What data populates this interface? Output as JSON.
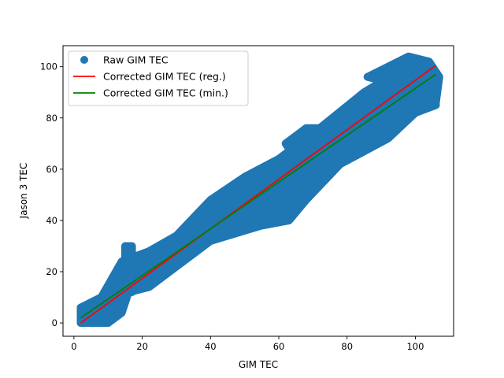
{
  "chart_data": {
    "type": "scatter",
    "title": "",
    "xlabel": "GIM TEC",
    "ylabel": "Jason 3 TEC",
    "xlim": [
      -3.2,
      111.2
    ],
    "ylim": [
      -5.2,
      108.2
    ],
    "xticks": [
      0,
      20,
      40,
      60,
      80,
      100
    ],
    "yticks": [
      0,
      20,
      40,
      60,
      80,
      100
    ],
    "grid": false,
    "legend_placement": "top-left",
    "series": [
      {
        "name": "Raw GIM TEC",
        "kind": "scatter",
        "color": "#1f77b4",
        "regions": [
          {
            "points": [
              [
                2,
                0
              ],
              [
                10,
                0
              ],
              [
                14,
                4
              ],
              [
                16,
                12
              ],
              [
                22,
                14
              ],
              [
                30,
                22
              ],
              [
                40,
                32
              ],
              [
                55,
                38
              ],
              [
                63,
                40
              ],
              [
                68,
                48
              ],
              [
                78,
                62
              ],
              [
                92,
                72
              ],
              [
                100,
                82
              ],
              [
                106,
                85
              ],
              [
                104,
                98
              ],
              [
                98,
                103
              ],
              [
                95,
                98
              ],
              [
                85,
                90
              ],
              [
                72,
                76
              ],
              [
                60,
                64
              ],
              [
                50,
                57
              ],
              [
                40,
                48
              ],
              [
                30,
                34
              ],
              [
                22,
                28
              ],
              [
                14,
                24
              ],
              [
                8,
                10
              ],
              [
                2,
                6
              ]
            ]
          },
          {
            "points": [
              [
                15,
                12
              ],
              [
                17,
                12
              ],
              [
                17,
                30
              ],
              [
                15,
                30
              ]
            ]
          },
          {
            "points": [
              [
                86,
                96
              ],
              [
                92,
                100
              ],
              [
                98,
                104
              ],
              [
                104,
                102
              ],
              [
                107,
                96
              ],
              [
                106,
                86
              ],
              [
                100,
                83
              ],
              [
                96,
                90
              ],
              [
                92,
                94
              ]
            ]
          },
          {
            "points": [
              [
                62,
                70
              ],
              [
                68,
                76
              ],
              [
                75,
                76
              ],
              [
                70,
                70
              ],
              [
                64,
                66
              ]
            ]
          }
        ]
      },
      {
        "name": "Corrected GIM TEC (reg.)",
        "kind": "line",
        "color": "#ff0000",
        "x": [
          2,
          106
        ],
        "y": [
          0,
          100.5
        ]
      },
      {
        "name": "Corrected GIM TEC (min.)",
        "kind": "line",
        "color": "#008000",
        "x": [
          2,
          106
        ],
        "y": [
          2,
          97
        ]
      }
    ]
  }
}
